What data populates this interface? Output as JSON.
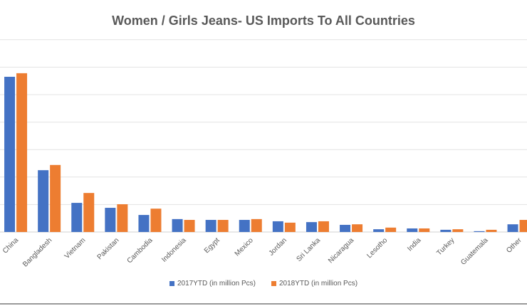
{
  "chart_data": {
    "type": "bar",
    "title": "Women / Girls Jeans- US Imports To All Countries",
    "xlabel": "",
    "ylabel": "",
    "ylim": [
      0,
      7
    ],
    "grid": true,
    "legend_position": "bottom",
    "categories": [
      "China",
      "Bangladesh",
      "Vietnam",
      "Pakistan",
      "Cambodia",
      "Indonesia",
      "Egypt",
      "Mexico",
      "Jordan",
      "Sri Lanka",
      "Nicaragua",
      "Lesotho",
      "India",
      "Turkey",
      "Guatemala",
      "Other"
    ],
    "series": [
      {
        "name": "2017YTD (in million Pcs)",
        "color": "#4472c4",
        "values": [
          5.65,
          2.25,
          1.06,
          0.88,
          0.62,
          0.47,
          0.44,
          0.44,
          0.39,
          0.36,
          0.26,
          0.1,
          0.13,
          0.08,
          0.03,
          0.28
        ]
      },
      {
        "name": "2018YTD (in million Pcs)",
        "color": "#ed7d31",
        "values": [
          5.78,
          2.44,
          1.42,
          1.01,
          0.85,
          0.44,
          0.44,
          0.47,
          0.34,
          0.39,
          0.28,
          0.16,
          0.13,
          0.1,
          0.08,
          0.44
        ]
      }
    ]
  }
}
